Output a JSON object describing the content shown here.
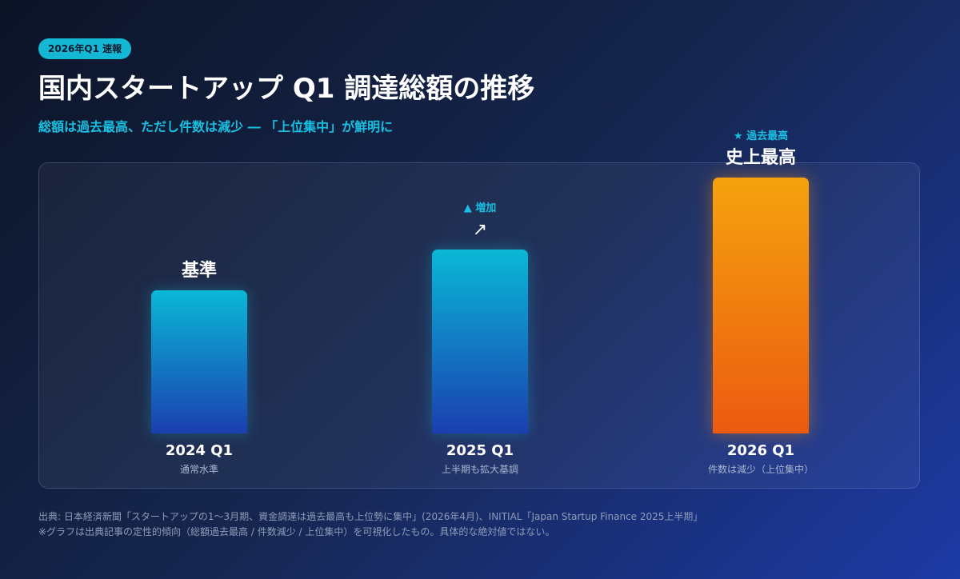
{
  "badge": "2026年Q1 速報",
  "title": "国内スタートアップ Q1 調達総額の推移",
  "subtitle": "総額は過去最高、ただし件数は減少 ― 「上位集中」が鮮明に",
  "chart_data": {
    "type": "bar",
    "categories": [
      "2024 Q1",
      "2025 Q1",
      "2026 Q1"
    ],
    "category_sublabels": [
      "通常水準",
      "上半期も拡大基調",
      "件数は減少（上位集中）"
    ],
    "bar_labels": [
      "基準",
      "",
      "史上最高"
    ],
    "bar_annotations": [
      "",
      "▲ 増加",
      "★ 過去最高"
    ],
    "values": [
      56,
      72,
      100
    ],
    "note": "qualitative relative levels shown by bar height (no numeric axis printed)",
    "ylim": [
      0,
      100
    ],
    "colors": [
      "#0ab8d6",
      "#0ab8d6",
      "#f5a20e"
    ],
    "grid": false,
    "legend": "none"
  },
  "footer": {
    "source": "出典: 日本経済新聞「スタートアップの1〜3月期、資金調達は過去最高も上位勢に集中」(2026年4月)、INITIAL「Japan Startup Finance 2025上半期」",
    "note": "※グラフは出典記事の定性的傾向（総額過去最高 / 件数減少 / 上位集中）を可視化したもの。具体的な絶対値ではない。"
  }
}
